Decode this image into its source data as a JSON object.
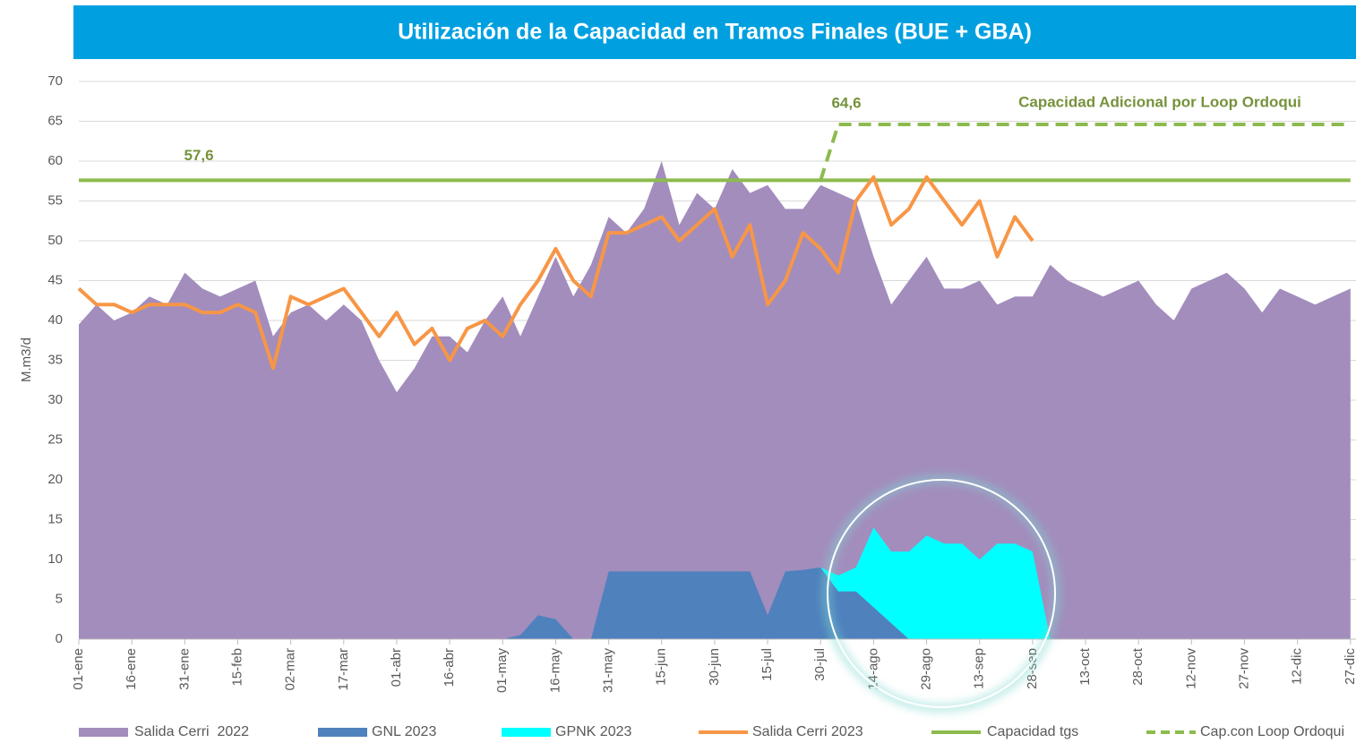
{
  "chart_data": {
    "type": "area",
    "title": "Utilización de la Capacidad en Tramos Finales (BUE + GBA)",
    "y_label": "M.m3/d",
    "categories": [
      "01-ene",
      null,
      null,
      "16-ene",
      null,
      null,
      "31-ene",
      null,
      null,
      "15-feb",
      null,
      null,
      "02-mar",
      null,
      null,
      "17-mar",
      null,
      null,
      "01-abr",
      null,
      null,
      "16-abr",
      null,
      null,
      "01-may",
      null,
      null,
      "16-may",
      null,
      null,
      "31-may",
      null,
      null,
      "15-jun",
      null,
      null,
      "30-jun",
      null,
      null,
      "15-jul",
      null,
      null,
      "30-jul",
      null,
      null,
      "14-ago",
      null,
      null,
      "29-ago",
      null,
      null,
      "13-sep",
      null,
      null,
      "28-sep",
      null,
      null,
      "13-oct",
      null,
      null,
      "28-oct",
      null,
      null,
      "12-nov",
      null,
      null,
      "27-nov",
      null,
      null,
      "12-dic",
      null,
      null,
      "27-dic"
    ],
    "ylim": [
      0,
      70
    ],
    "yticks": [
      0,
      5,
      10,
      15,
      20,
      25,
      30,
      35,
      40,
      45,
      50,
      55,
      60,
      65,
      70
    ],
    "grid": true,
    "legend": "bottom",
    "series": [
      {
        "name": "Salida Cerri  2022",
        "color": "#a28dbd",
        "style": "area",
        "values": [
          39.5,
          42,
          40,
          41,
          43,
          42,
          46,
          44,
          43,
          44,
          45,
          38,
          41,
          42,
          40,
          42,
          40,
          35,
          31,
          34,
          38,
          38,
          36,
          40,
          43,
          38,
          43,
          48,
          43,
          47,
          53,
          51,
          54,
          60,
          52,
          56,
          54,
          59,
          56,
          57,
          54,
          54,
          57,
          56,
          55,
          48,
          42,
          45,
          48,
          44,
          44,
          45,
          42,
          43,
          43,
          47,
          45,
          44,
          43,
          44,
          45,
          42,
          40,
          44,
          45,
          46,
          44,
          41,
          44,
          43,
          42,
          43,
          44
        ]
      },
      {
        "name": "GNL 2023",
        "color": "#4f81bd",
        "style": "area",
        "stack": true,
        "values": [
          0,
          0,
          0,
          0,
          0,
          0,
          0,
          0,
          0,
          0,
          0,
          0,
          0,
          0,
          0,
          0,
          0,
          0,
          0,
          0,
          0,
          0,
          0,
          0,
          0,
          0.5,
          3,
          2.5,
          0,
          0,
          8.5,
          8.5,
          8.5,
          8.5,
          8.5,
          8.5,
          8.5,
          8.5,
          8.5,
          3,
          8.5,
          8.7,
          9,
          6,
          6,
          4,
          2,
          0,
          0,
          0,
          0,
          0,
          0,
          0,
          0,
          0,
          0,
          0,
          0,
          0,
          0,
          0,
          0,
          0,
          0,
          0,
          0,
          0,
          0,
          0,
          0,
          0,
          0
        ]
      },
      {
        "name": "GPNK 2023",
        "color": "#00ffff",
        "style": "area",
        "stack": true,
        "values": [
          0,
          0,
          0,
          0,
          0,
          0,
          0,
          0,
          0,
          0,
          0,
          0,
          0,
          0,
          0,
          0,
          0,
          0,
          0,
          0,
          0,
          0,
          0,
          0,
          0,
          0,
          0,
          0,
          0,
          0,
          0,
          0,
          0,
          0,
          0,
          0,
          0,
          0,
          0,
          0,
          0,
          0,
          0,
          2,
          3,
          10,
          9,
          11,
          13,
          12,
          12,
          10,
          12,
          12,
          11,
          0,
          0,
          0,
          0,
          0,
          0,
          0,
          0,
          0,
          0,
          0,
          0,
          0,
          0,
          0,
          0,
          0,
          0
        ]
      },
      {
        "name": "Salida Cerri 2023",
        "color": "#f79646",
        "style": "line",
        "values": [
          44,
          42,
          42,
          41,
          42,
          42,
          42,
          41,
          41,
          42,
          41,
          34,
          43,
          42,
          43,
          44,
          41,
          38,
          41,
          37,
          39,
          35,
          39,
          40,
          38,
          42,
          45,
          49,
          45,
          43,
          51,
          51,
          52,
          53,
          50,
          52,
          54,
          48,
          52,
          42,
          45,
          51,
          49,
          46,
          55,
          58,
          52,
          54,
          58,
          55,
          52,
          55,
          48,
          53,
          50,
          null,
          null,
          null,
          null,
          null,
          null,
          null,
          null,
          null,
          null,
          null,
          null,
          null,
          null,
          null,
          null,
          null,
          null
        ]
      },
      {
        "name": "Capacidad tgs",
        "color": "#8cbb4e",
        "style": "line",
        "values": [
          57.6,
          57.6,
          57.6,
          57.6,
          57.6,
          57.6,
          57.6,
          57.6,
          57.6,
          57.6,
          57.6,
          57.6,
          57.6,
          57.6,
          57.6,
          57.6,
          57.6,
          57.6,
          57.6,
          57.6,
          57.6,
          57.6,
          57.6,
          57.6,
          57.6,
          57.6,
          57.6,
          57.6,
          57.6,
          57.6,
          57.6,
          57.6,
          57.6,
          57.6,
          57.6,
          57.6,
          57.6,
          57.6,
          57.6,
          57.6,
          57.6,
          57.6,
          57.6,
          57.6,
          57.6,
          57.6,
          57.6,
          57.6,
          57.6,
          57.6,
          57.6,
          57.6,
          57.6,
          57.6,
          57.6,
          57.6,
          57.6,
          57.6,
          57.6,
          57.6,
          57.6,
          57.6,
          57.6,
          57.6,
          57.6,
          57.6,
          57.6,
          57.6,
          57.6,
          57.6,
          57.6,
          57.6,
          57.6
        ]
      },
      {
        "name": "Cap.con Loop Ordoqui",
        "color": "#8cbb4e",
        "style": "dashed",
        "values": [
          null,
          null,
          null,
          null,
          null,
          null,
          null,
          null,
          null,
          null,
          null,
          null,
          null,
          null,
          null,
          null,
          null,
          null,
          null,
          null,
          null,
          null,
          null,
          null,
          null,
          null,
          null,
          null,
          null,
          null,
          null,
          null,
          null,
          null,
          null,
          null,
          null,
          null,
          null,
          null,
          null,
          null,
          57.6,
          64.6,
          64.6,
          64.6,
          64.6,
          64.6,
          64.6,
          64.6,
          64.6,
          64.6,
          64.6,
          64.6,
          64.6,
          64.6,
          64.6,
          64.6,
          64.6,
          64.6,
          64.6,
          64.6,
          64.6,
          64.6,
          64.6,
          64.6,
          64.6,
          64.6,
          64.6,
          64.6,
          64.6,
          64.6,
          64.6
        ]
      }
    ],
    "annotations": [
      {
        "text": "57,6",
        "value": 57.6
      },
      {
        "text": "64,6",
        "value": 64.6
      },
      {
        "text": "Capacidad Adicional por Loop Ordoqui"
      }
    ]
  }
}
